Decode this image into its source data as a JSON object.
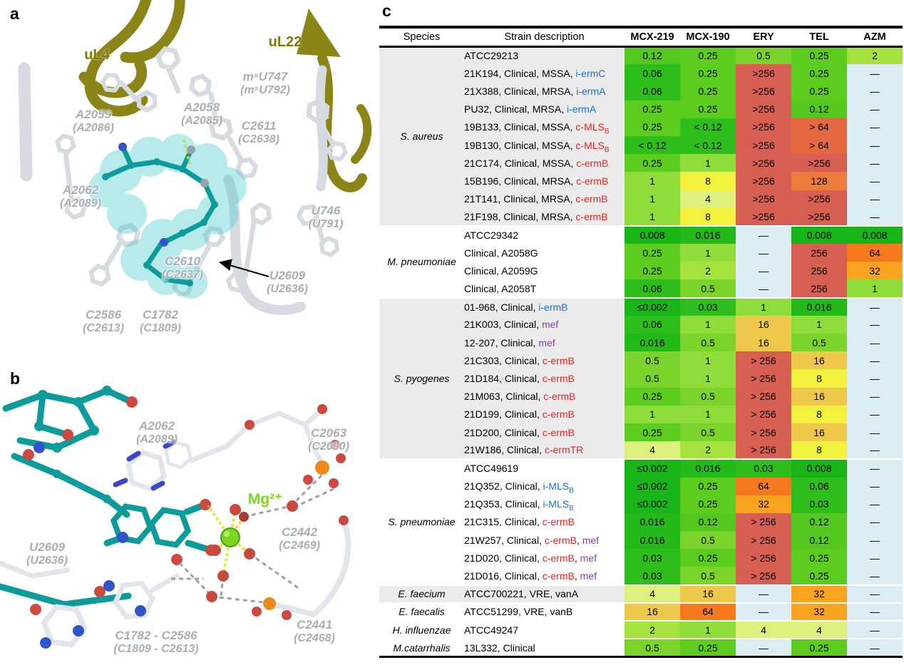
{
  "panels": {
    "a": {
      "letter": "a",
      "protein_labels": {
        "uL4": "uL4",
        "uL22": "uL22"
      },
      "labels": [
        {
          "name": "m⁵U747",
          "paren": "(m⁵U792)"
        },
        {
          "name": "A2059",
          "paren": "(A2086)"
        },
        {
          "name": "A2058",
          "paren": "(A2085)"
        },
        {
          "name": "C2611",
          "paren": "(C2638)"
        },
        {
          "name": "A2062",
          "paren": "(A2089)"
        },
        {
          "name": "U746",
          "paren": "(U791)"
        },
        {
          "name": "C2610",
          "paren": "(C2637)"
        },
        {
          "name": "U2609",
          "paren": "(U2636)"
        },
        {
          "name": "C2586",
          "paren": "(C2613)"
        },
        {
          "name": "C1782",
          "paren": "(C1809)"
        }
      ]
    },
    "b": {
      "letter": "b",
      "mg_label": "Mg²⁺",
      "labels": [
        {
          "name": "A2062",
          "paren": "(A2089)"
        },
        {
          "name": "C2063",
          "paren": "(C2090)"
        },
        {
          "name": "U2609",
          "paren": "(U2636)"
        },
        {
          "name": "C2442",
          "paren": "(C2469)"
        },
        {
          "name": "C1782 - C2586",
          "paren": "(C1809 - C2613)"
        },
        {
          "name": "C2441",
          "paren": "(C2468)"
        }
      ]
    },
    "c": {
      "letter": "c"
    }
  },
  "table": {
    "columns": [
      "Species",
      "Strain description",
      "MCX-219",
      "MCX-190",
      "ERY",
      "TEL",
      "AZM"
    ],
    "gene_colors": {
      "k": "#000000",
      "b": "#1B6FCE",
      "r": "#EC2420",
      "p": "#7D3FBE"
    },
    "shade_color": "#EBEBEB",
    "mic_colors": {
      "≤0.002": "#17B517",
      "0.008": "#17B517",
      "0.016": "#23BA19",
      "0.03": "#2DBE1B",
      "0.06": "#2DBE1B",
      "< 0.12": "#2DBE1B",
      "0.12": "#54C81E",
      "0.25": "#5CCC1E",
      "0.5": "#7AD42B",
      "1": "#90DC3A",
      "2": "#A5E23E",
      "4": "#DDF07E",
      "8": "#F2F23E",
      "16": "#EDC84A",
      "32": "#F9A41E",
      "64": "#F6791E",
      "128": "#ED7B3B",
      "> 64": "#E6693F",
      "256": "#D75F52",
      "> 256": "#D75F52",
      ">256": "#D75F52",
      "—": "#DCEDF4"
    },
    "groups": [
      {
        "species": "S. aureus",
        "shaded": true,
        "rows": [
          {
            "strain": [
              [
                "ATCC29213",
                "k"
              ]
            ],
            "mic": [
              "0.12",
              "0.25",
              "0.5",
              "0.25",
              "2"
            ]
          },
          {
            "strain": [
              [
                "21K194, Clinical, MSSA, ",
                "k"
              ],
              [
                "i-ermC",
                "b"
              ]
            ],
            "mic": [
              "0.06",
              "0.25",
              ">256",
              "0.25",
              "—"
            ]
          },
          {
            "strain": [
              [
                "21X388, Clinical, MRSA, ",
                "k"
              ],
              [
                "i-ermA",
                "b"
              ]
            ],
            "mic": [
              "0.06",
              "0.25",
              ">256",
              "0.25",
              "—"
            ]
          },
          {
            "strain": [
              [
                "PU32, Clinical, MRSA, ",
                "k"
              ],
              [
                "i-ermA",
                "b"
              ]
            ],
            "mic": [
              "0.25",
              "0.25",
              ">256",
              "0.12",
              "—"
            ]
          },
          {
            "strain": [
              [
                "19B133, Clinical, MSSA, ",
                "k"
              ],
              [
                "c-MLS",
                "r"
              ],
              [
                "B",
                "r",
                "sub"
              ]
            ],
            "mic": [
              "0.25",
              "< 0.12",
              ">256",
              "> 64",
              "—"
            ]
          },
          {
            "strain": [
              [
                "19B130, Clinical, MSSA, ",
                "k"
              ],
              [
                "c-MLS",
                "r"
              ],
              [
                "B",
                "r",
                "sub"
              ]
            ],
            "mic": [
              "< 0.12",
              "< 0.12",
              ">256",
              "> 64",
              "—"
            ]
          },
          {
            "strain": [
              [
                "21C174, Clinical, MSSA, ",
                "k"
              ],
              [
                "c-ermB",
                "r"
              ]
            ],
            "mic": [
              "0.25",
              "1",
              ">256",
              ">256",
              "—"
            ]
          },
          {
            "strain": [
              [
                "15B196, Clinical, MRSA, ",
                "k"
              ],
              [
                "c-ermB",
                "r"
              ]
            ],
            "mic": [
              "1",
              "8",
              ">256",
              "128",
              "—"
            ]
          },
          {
            "strain": [
              [
                "21T141, Clinical, MRSA, ",
                "k"
              ],
              [
                "c-ermB",
                "r"
              ]
            ],
            "mic": [
              "1",
              "4",
              ">256",
              ">256",
              "—"
            ]
          },
          {
            "strain": [
              [
                "21F198, Clinical, MRSA, ",
                "k"
              ],
              [
                "c-ermB",
                "r"
              ]
            ],
            "mic": [
              "1",
              "8",
              ">256",
              ">256",
              "—"
            ]
          }
        ]
      },
      {
        "species": "M. pneumoniae",
        "shaded": false,
        "rows": [
          {
            "strain": [
              [
                "ATCC29342",
                "k"
              ]
            ],
            "mic": [
              "0.008",
              "0.016",
              "—",
              "0.008",
              "0.008"
            ]
          },
          {
            "strain": [
              [
                "Clinical, A2058G",
                "k"
              ]
            ],
            "mic": [
              "0.25",
              "1",
              "—",
              "256",
              "64"
            ]
          },
          {
            "strain": [
              [
                "Clinical, A2059G",
                "k"
              ]
            ],
            "mic": [
              "0.25",
              "2",
              "—",
              "256",
              "32"
            ]
          },
          {
            "strain": [
              [
                "Clinical, A2058T",
                "k"
              ]
            ],
            "mic": [
              "0.06",
              "0.5",
              "—",
              "256",
              "1"
            ]
          }
        ]
      },
      {
        "species": "S. pyogenes",
        "shaded": true,
        "rows": [
          {
            "strain": [
              [
                "01-968, Clinical, ",
                "k"
              ],
              [
                "i-ermB",
                "b"
              ]
            ],
            "mic": [
              "≤0.002",
              "0.03",
              "1",
              "0.016",
              "—"
            ]
          },
          {
            "strain": [
              [
                "21K003, Clinical, ",
                "k"
              ],
              [
                "mef",
                "p"
              ]
            ],
            "mic": [
              "0.06",
              "1",
              "16",
              "1",
              "—"
            ]
          },
          {
            "strain": [
              [
                "12-207, Clinical, ",
                "k"
              ],
              [
                "mef",
                "p"
              ]
            ],
            "mic": [
              "0.016",
              "0.5",
              "16",
              "0.5",
              "—"
            ]
          },
          {
            "strain": [
              [
                "21C303, Clinical, ",
                "k"
              ],
              [
                "c-ermB",
                "r"
              ]
            ],
            "mic": [
              "0.5",
              "1",
              "> 256",
              "16",
              "—"
            ]
          },
          {
            "strain": [
              [
                "21D184, Clinical, ",
                "k"
              ],
              [
                "c-ermB",
                "r"
              ]
            ],
            "mic": [
              "0.5",
              "1",
              "> 256",
              "8",
              "—"
            ]
          },
          {
            "strain": [
              [
                "21M063, Clinical, ",
                "k"
              ],
              [
                "c-ermB",
                "r"
              ]
            ],
            "mic": [
              "0.25",
              "0.5",
              "> 256",
              "16",
              "—"
            ]
          },
          {
            "strain": [
              [
                "21D199, Clinical, ",
                "k"
              ],
              [
                "c-ermB",
                "r"
              ]
            ],
            "mic": [
              "1",
              "1",
              "> 256",
              "8",
              "—"
            ]
          },
          {
            "strain": [
              [
                "21D200, Clinical, ",
                "k"
              ],
              [
                "c-ermB",
                "r"
              ]
            ],
            "mic": [
              "0.25",
              "0.5",
              "> 256",
              "16",
              "—"
            ]
          },
          {
            "strain": [
              [
                "21W186, Clinical, ",
                "k"
              ],
              [
                "c-ermTR",
                "r"
              ]
            ],
            "mic": [
              "4",
              "2",
              "> 256",
              "8",
              "—"
            ]
          }
        ]
      },
      {
        "species": "S. pneumoniae",
        "shaded": false,
        "rows": [
          {
            "strain": [
              [
                "ATCC49619",
                "k"
              ]
            ],
            "mic": [
              "≤0.002",
              "0.016",
              "0.03",
              "0.008",
              "—"
            ]
          },
          {
            "strain": [
              [
                "21Q352, Clinical, ",
                "k"
              ],
              [
                "i-MLS",
                "b"
              ],
              [
                "B",
                "b",
                "sub"
              ]
            ],
            "mic": [
              "≤0.002",
              "0.25",
              "64",
              "0.06",
              "—"
            ]
          },
          {
            "strain": [
              [
                "21Q353, Clinical, ",
                "k"
              ],
              [
                "i-MLS",
                "b"
              ],
              [
                "B",
                "b",
                "sub"
              ]
            ],
            "mic": [
              "≤0.002",
              "0.25",
              "32",
              "0.03",
              "—"
            ]
          },
          {
            "strain": [
              [
                "21C315, Clinical, ",
                "k"
              ],
              [
                "c-ermB",
                "r"
              ]
            ],
            "mic": [
              "0.016",
              "0.12",
              "> 256",
              "0.12",
              "—"
            ]
          },
          {
            "strain": [
              [
                "21W257, Clinical, ",
                "k"
              ],
              [
                "c-ermB",
                "r"
              ],
              [
                ", ",
                "k"
              ],
              [
                "mef",
                "p"
              ]
            ],
            "mic": [
              "0.016",
              "0.5",
              "> 256",
              "0.12",
              "—"
            ]
          },
          {
            "strain": [
              [
                "21D020, Clinical, ",
                "k"
              ],
              [
                "c-ermB",
                "r"
              ],
              [
                ", ",
                "k"
              ],
              [
                "mef",
                "p"
              ]
            ],
            "mic": [
              "0.03",
              "0.25",
              "> 256",
              "0.25",
              "—"
            ]
          },
          {
            "strain": [
              [
                "21D016, Clinical, ",
                "k"
              ],
              [
                "c-ermB",
                "r"
              ],
              [
                ", ",
                "k"
              ],
              [
                "mef",
                "p"
              ]
            ],
            "mic": [
              "0.03",
              "0.5",
              "> 256",
              "0.25",
              "—"
            ]
          }
        ]
      },
      {
        "species": "E. faecium",
        "shaded": true,
        "rows": [
          {
            "strain": [
              [
                "ATCC700221, VRE, vanA",
                "k"
              ]
            ],
            "mic": [
              "4",
              "16",
              "—",
              "32",
              "—"
            ]
          }
        ]
      },
      {
        "species": "E. faecalis",
        "shaded": false,
        "rows": [
          {
            "strain": [
              [
                "ATCC51299, VRE, vanB",
                "k"
              ]
            ],
            "mic": [
              "16",
              "64",
              "—",
              "32",
              "—"
            ]
          }
        ]
      },
      {
        "species": "H. influenzae",
        "shaded": false,
        "rows": [
          {
            "strain": [
              [
                "ATCC49247",
                "k"
              ]
            ],
            "mic": [
              "2",
              "1",
              "4",
              "4",
              "—"
            ]
          }
        ]
      },
      {
        "species": "M.catarrhalis",
        "shaded": false,
        "rows": [
          {
            "strain": [
              [
                "13L332, Clinical",
                "k"
              ]
            ],
            "mic": [
              "0.5",
              "0.25",
              "—",
              "0.25",
              "—"
            ]
          }
        ]
      }
    ]
  }
}
